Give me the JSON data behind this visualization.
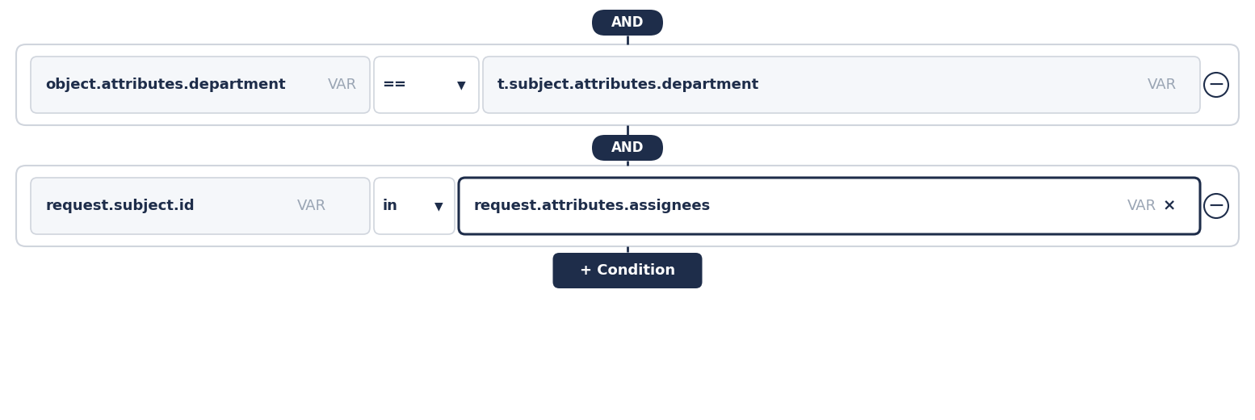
{
  "bg_color": "#ffffff",
  "dark_navy": "#1e2d4a",
  "border_color": "#d0d5dd",
  "var_color": "#9aa5b4",
  "text_dark": "#1e2d4a",
  "row1": {
    "left_text": "object.attributes.department",
    "left_var": "VAR",
    "op": "==",
    "right_text": "t.subject.attributes.department",
    "right_var": "VAR"
  },
  "row2": {
    "left_text": "request.subject.id",
    "left_var": "VAR",
    "op": "in",
    "right_text": "request.attributes.assignees",
    "right_var": "VAR"
  },
  "condition_text": "+ Condition",
  "and_text": "AND",
  "fig_w": 15.54,
  "fig_h": 5.2,
  "dpi": 100
}
